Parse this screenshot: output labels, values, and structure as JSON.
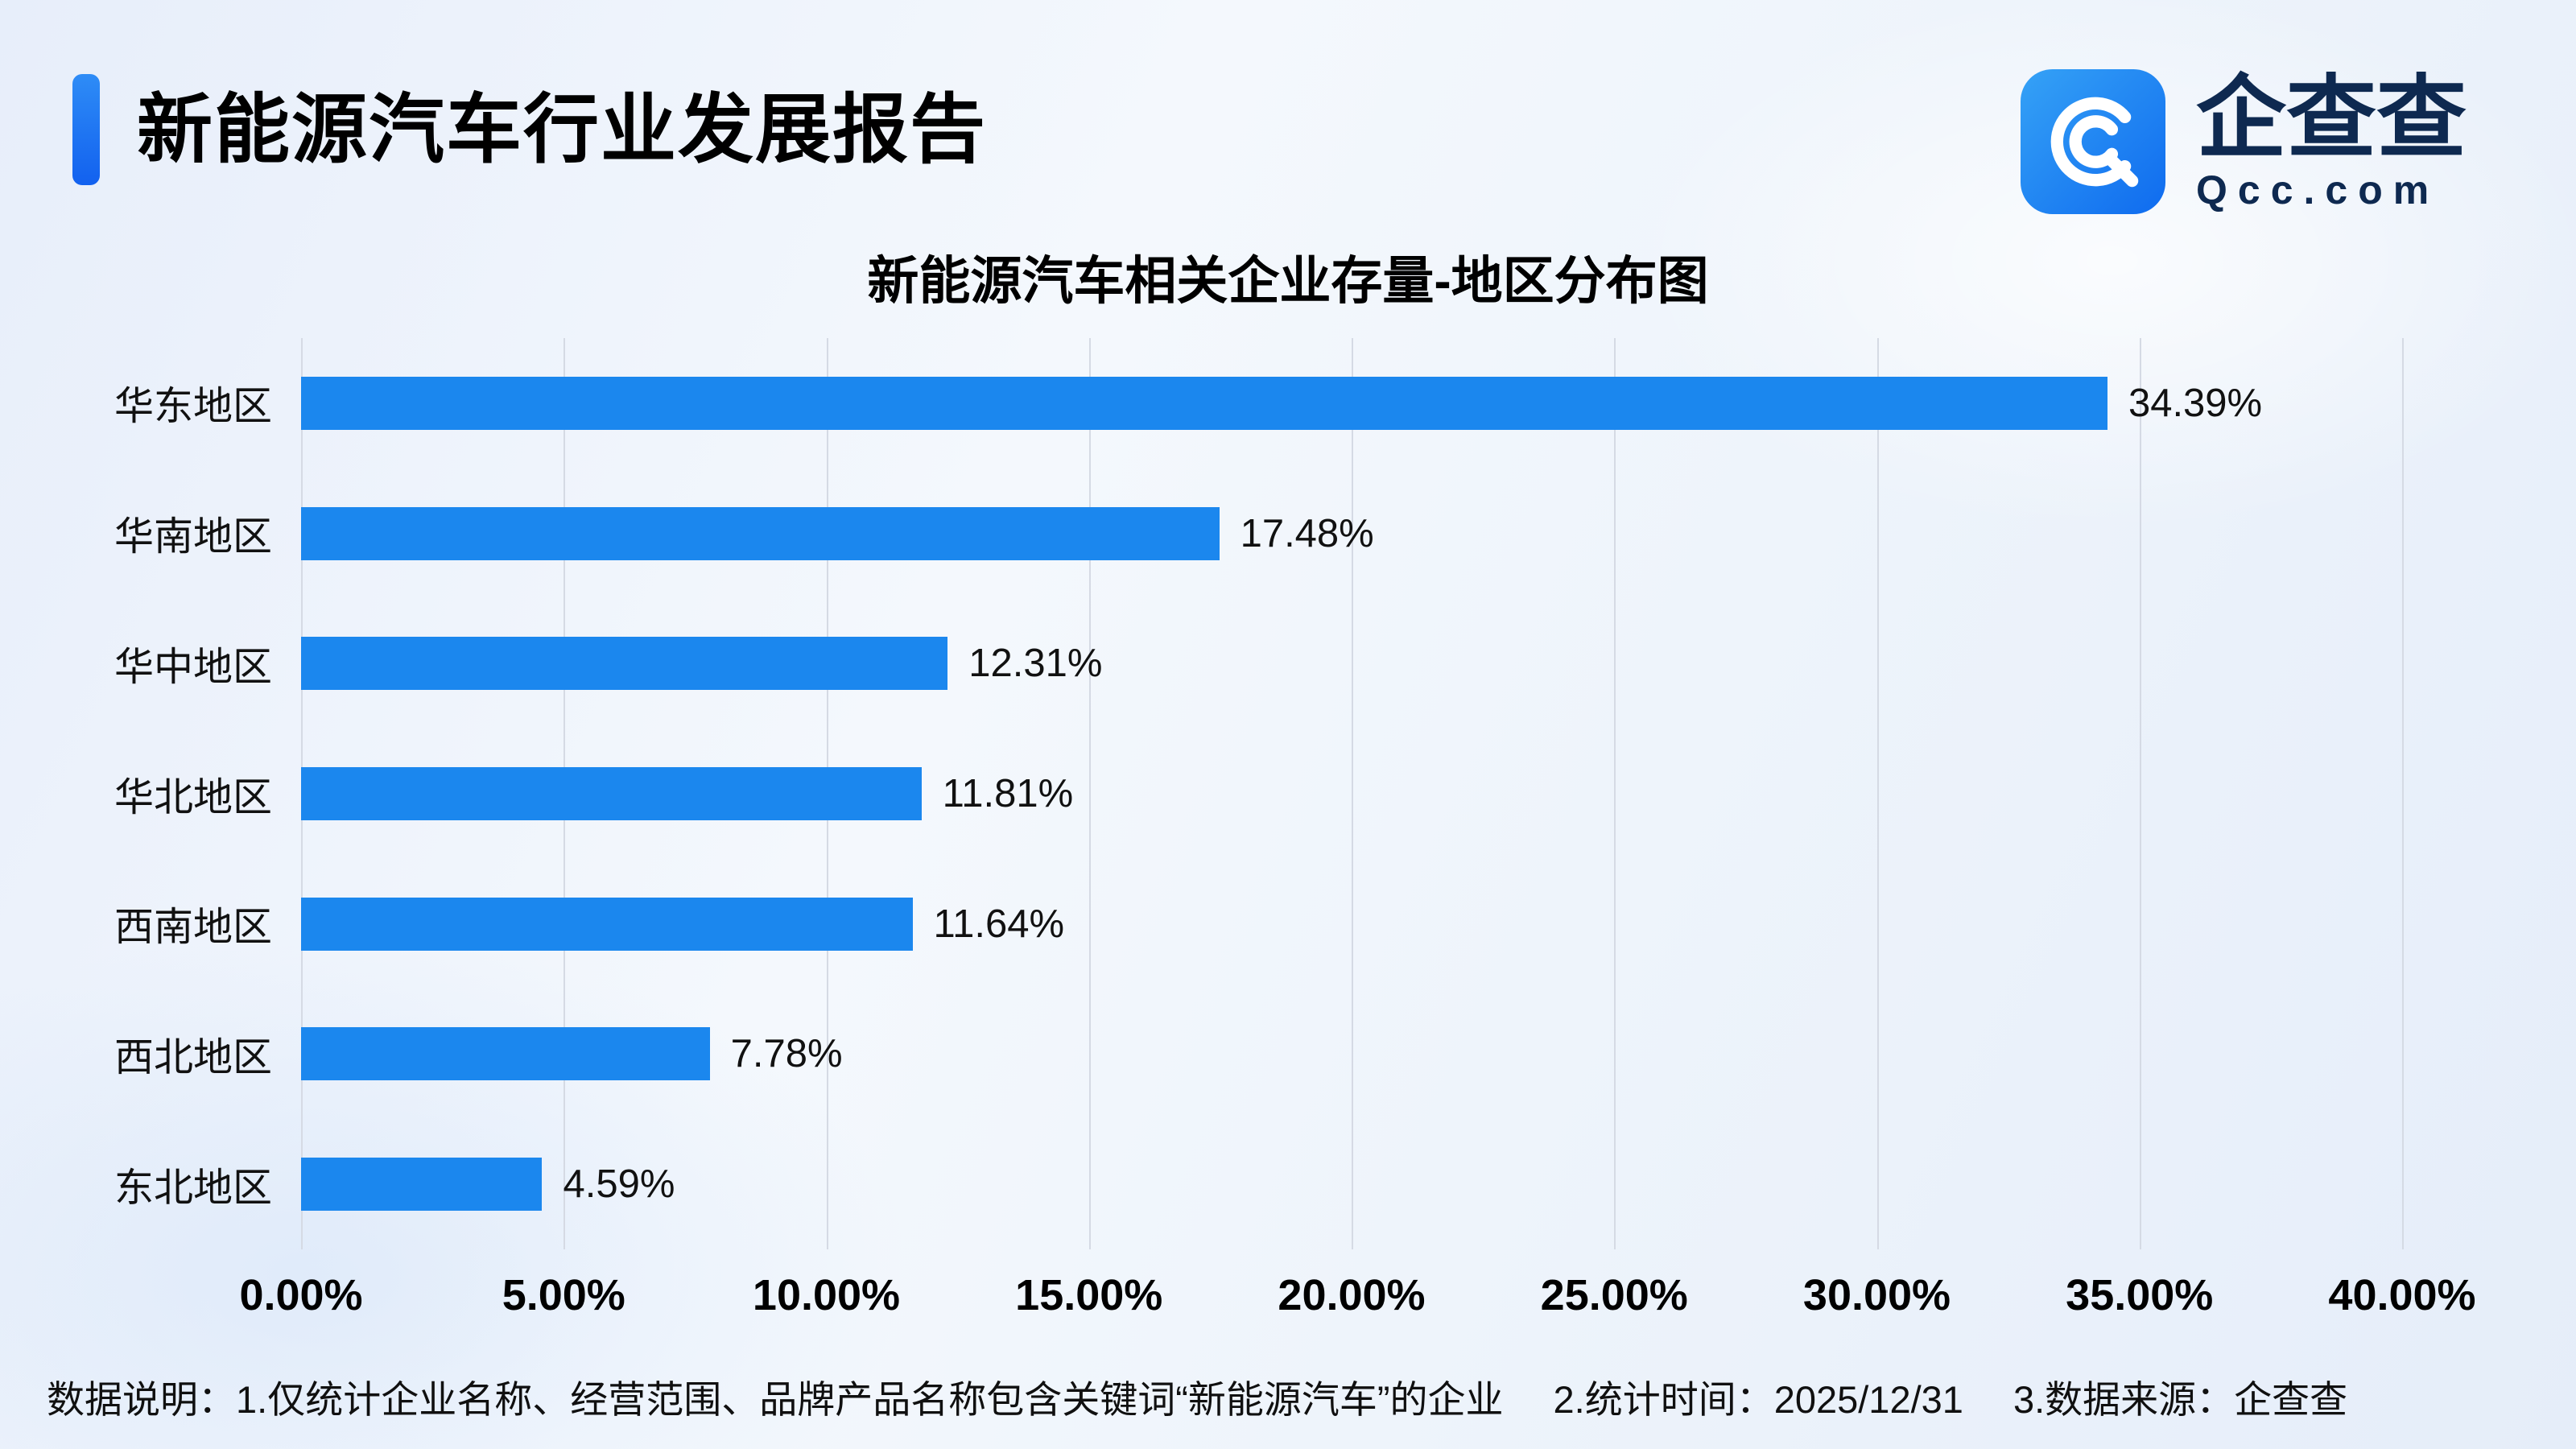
{
  "header": {
    "title": "新能源汽车行业发展报告"
  },
  "logo": {
    "brand": "企查查",
    "domain": "Qcc.com",
    "icon": "qcc-spiral-icon",
    "icon_color": "#1e86f3"
  },
  "chart_data": {
    "type": "bar",
    "orientation": "horizontal",
    "title": "新能源汽车相关企业存量-地区分布图",
    "categories": [
      "华东地区",
      "华南地区",
      "华中地区",
      "华北地区",
      "西南地区",
      "西北地区",
      "东北地区"
    ],
    "values": [
      34.39,
      17.48,
      12.31,
      11.81,
      11.64,
      7.78,
      4.59
    ],
    "value_labels": [
      "34.39%",
      "17.48%",
      "12.31%",
      "11.81%",
      "11.64%",
      "7.78%",
      "4.59%"
    ],
    "xlim": [
      0,
      40
    ],
    "x_ticks": [
      "0.00%",
      "5.00%",
      "10.00%",
      "15.00%",
      "20.00%",
      "25.00%",
      "30.00%",
      "35.00%",
      "40.00%"
    ],
    "x_tick_values": [
      0,
      5,
      10,
      15,
      20,
      25,
      30,
      35,
      40
    ],
    "grid": true,
    "legend": false,
    "bar_color": "#1b87ee"
  },
  "footer": {
    "parts": [
      "数据说明：1.仅统计企业名称、经营范围、品牌产品名称包含关键词“新能源汽车”的企业",
      "2.统计时间：2025/12/31",
      "3.数据来源：企查查"
    ]
  }
}
